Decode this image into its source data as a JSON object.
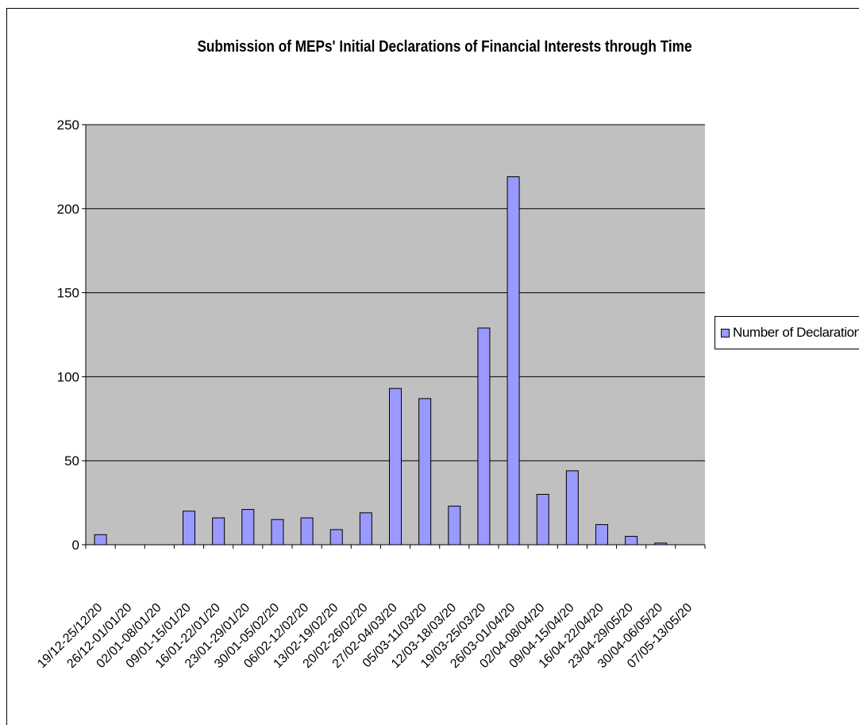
{
  "chart_data": {
    "type": "bar",
    "title": "Submission of MEPs' Initial Declarations of Financial Interests through Time",
    "xlabel": "",
    "ylabel": "",
    "ylim": [
      0,
      250
    ],
    "yticks": [
      0,
      50,
      100,
      150,
      200,
      250
    ],
    "grid": true,
    "legend_position": "right",
    "categories": [
      "19/12-25/12/20",
      "26/12-01/01/20",
      "02/01-08/01/20",
      "09/01-15/01/20",
      "16/01-22/01/20",
      "23/01-29/01/20",
      "30/01-05/02/20",
      "06/02-12/02/20",
      "13/02-19/02/20",
      "20/02-26/02/20",
      "27/02-04/03/20",
      "05/03-11/03/20",
      "12/03-18/03/20",
      "19/03-25/03/20",
      "26/03-01/04/20",
      "02/04-08/04/20",
      "09/04-15/04/20",
      "16/04-22/04/20",
      "23/04-29/05/20",
      "30/04-06/05/20",
      "07/05-13/05/20"
    ],
    "series": [
      {
        "name": "Number of Declarations",
        "values": [
          6,
          0,
          0,
          20,
          16,
          21,
          15,
          16,
          9,
          19,
          93,
          87,
          23,
          129,
          219,
          30,
          44,
          12,
          5,
          1,
          0
        ]
      }
    ],
    "colors": {
      "bar_fill": "#9999ff",
      "plot_background": "#c0c0c0",
      "gridline": "#000000"
    }
  }
}
